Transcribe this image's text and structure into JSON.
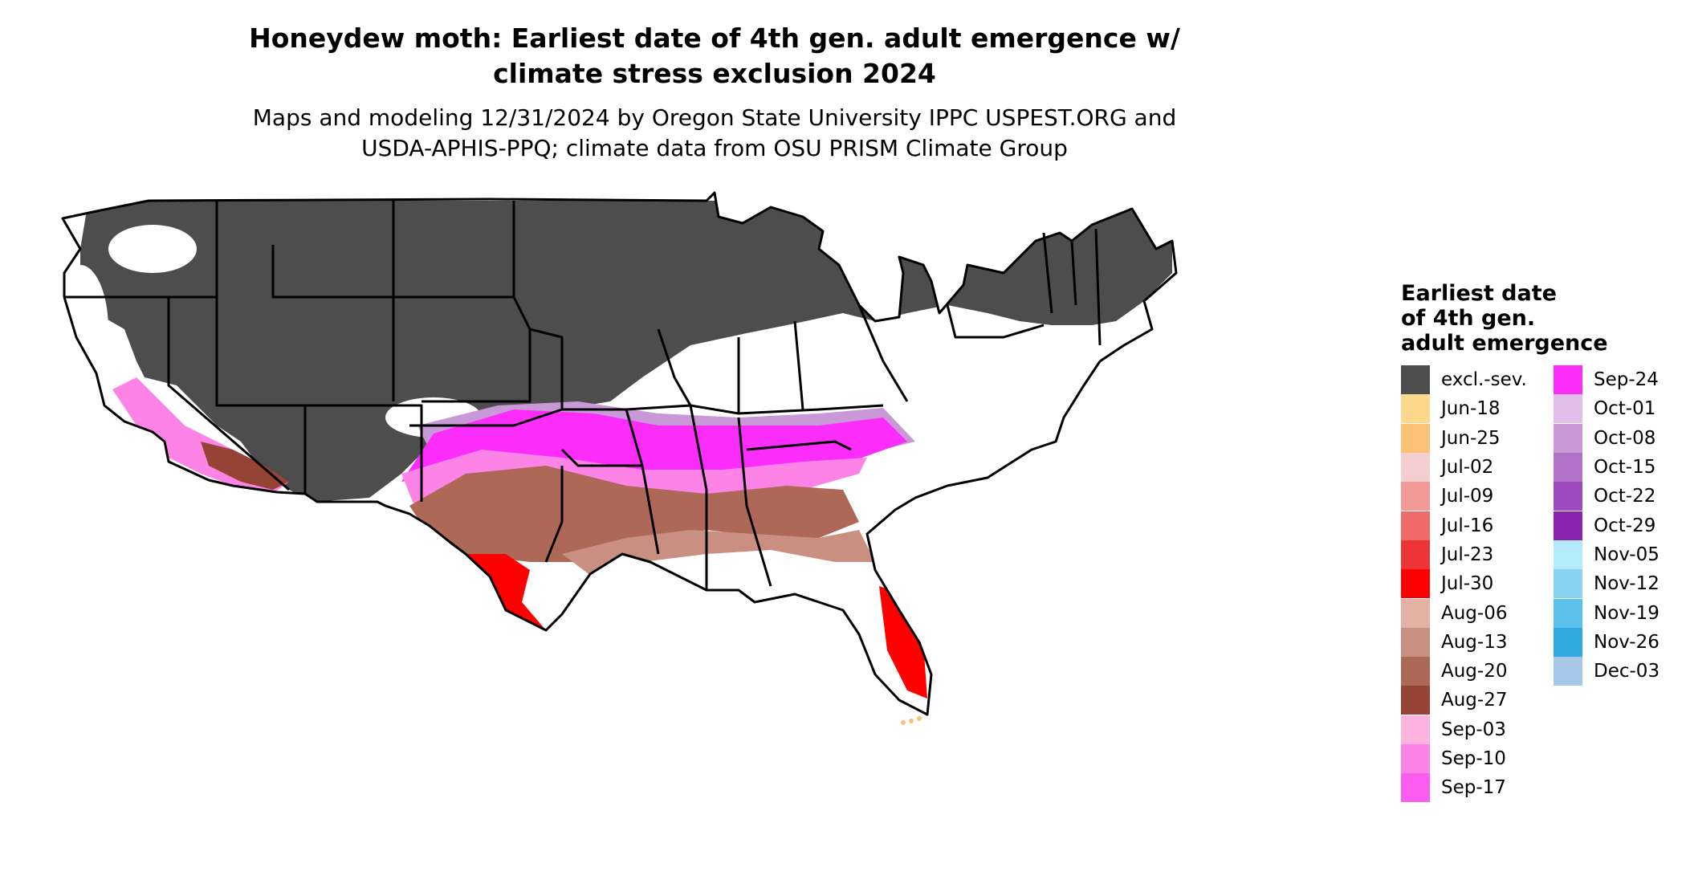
{
  "title": {
    "line1": "Honeydew moth: Earliest date of 4th gen. adult emergence w/",
    "line2": "climate stress exclusion 2024"
  },
  "subtitle": {
    "line1": "Maps and modeling 12/31/2024 by Oregon State University IPPC USPEST.ORG and",
    "line2": "USDA-APHIS-PPQ; climate data from OSU PRISM Climate Group"
  },
  "legend": {
    "title_lines": [
      "Earliest date",
      "of 4th gen.",
      "adult emergence"
    ],
    "items": [
      {
        "label": "excl.-sev.",
        "color": "#4d4d4d"
      },
      {
        "label": "Jun-18",
        "color": "#fcd88d"
      },
      {
        "label": "Jun-25",
        "color": "#fbc276"
      },
      {
        "label": "Jul-02",
        "color": "#f3cfcf"
      },
      {
        "label": "Jul-09",
        "color": "#f29a98"
      },
      {
        "label": "Jul-16",
        "color": "#ef6a68"
      },
      {
        "label": "Jul-23",
        "color": "#ed3537"
      },
      {
        "label": "Jul-30",
        "color": "#ff0000"
      },
      {
        "label": "Aug-06",
        "color": "#e3b2a4"
      },
      {
        "label": "Aug-13",
        "color": "#c98f80"
      },
      {
        "label": "Aug-20",
        "color": "#ae6857"
      },
      {
        "label": "Aug-27",
        "color": "#944334"
      },
      {
        "label": "Sep-03",
        "color": "#fdb2df"
      },
      {
        "label": "Sep-10",
        "color": "#fd84e6"
      },
      {
        "label": "Sep-17",
        "color": "#fd5cf0"
      },
      {
        "label": "Sep-24",
        "color": "#fc2dfb"
      },
      {
        "label": "Oct-01",
        "color": "#e2bfe8"
      },
      {
        "label": "Oct-08",
        "color": "#c998d6"
      },
      {
        "label": "Oct-15",
        "color": "#b171c9"
      },
      {
        "label": "Oct-22",
        "color": "#9c4abd"
      },
      {
        "label": "Oct-29",
        "color": "#8a24b0"
      },
      {
        "label": "Nov-05",
        "color": "#b3eafc"
      },
      {
        "label": "Nov-12",
        "color": "#86d4f2"
      },
      {
        "label": "Nov-19",
        "color": "#5ac0ec"
      },
      {
        "label": "Nov-26",
        "color": "#2fa9e0"
      },
      {
        "label": "Dec-03",
        "color": "#a6c7e8"
      }
    ]
  }
}
